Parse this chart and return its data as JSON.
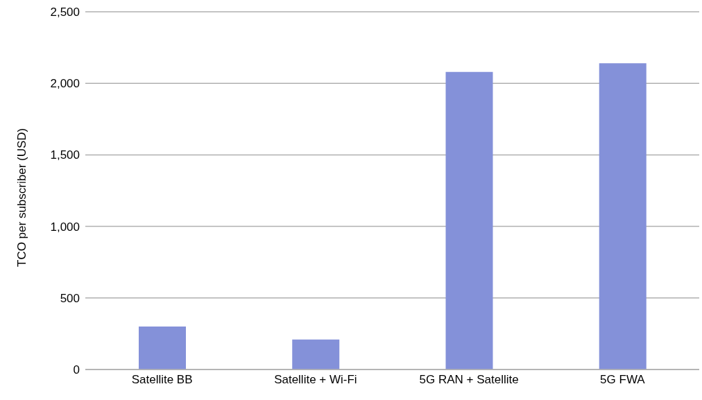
{
  "chart_data": {
    "type": "bar",
    "ylabel": "TCO per subscriber (USD)",
    "categories": [
      "Satellite BB",
      "Satellite + Wi-Fi",
      "5G RAN + Satellite",
      "5G FWA"
    ],
    "values": [
      300,
      210,
      2080,
      2140
    ],
    "color": "#8491d9",
    "ylim": [
      0,
      2500
    ],
    "yticks": [
      {
        "value": 0,
        "label": "0"
      },
      {
        "value": 500,
        "label": "500"
      },
      {
        "value": 1000,
        "label": "1,000"
      },
      {
        "value": 1500,
        "label": "1,500"
      },
      {
        "value": 2000,
        "label": "2,000"
      },
      {
        "value": 2500,
        "label": "2,500"
      }
    ],
    "grid": "y"
  }
}
